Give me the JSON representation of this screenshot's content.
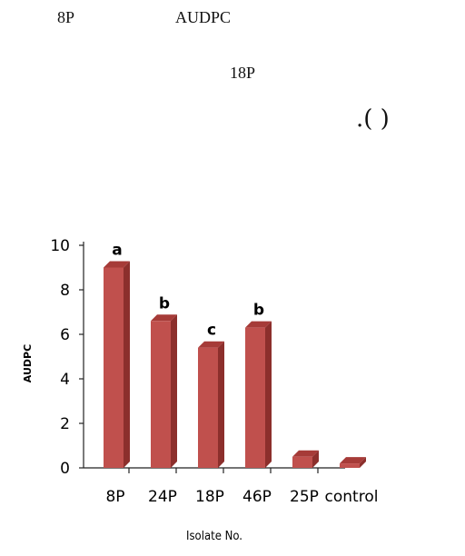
{
  "text": {
    "line1_left": "8P",
    "line1_right": "AUDPC",
    "line2": "18P",
    "line3": ".(          )"
  },
  "chart_data": {
    "type": "bar",
    "categories": [
      "8P",
      "24P",
      "18P",
      "46P",
      "25P",
      "control"
    ],
    "values": [
      9.0,
      6.6,
      5.4,
      6.3,
      0.5,
      0.2
    ],
    "significance": [
      "a",
      "b",
      "c",
      "b",
      "",
      ""
    ],
    "ylabel": "AUDPC",
    "xlabel": "Isolate No.",
    "ylim": [
      0,
      10
    ],
    "yticks": [
      0,
      2,
      4,
      6,
      8,
      10
    ],
    "grid": false,
    "bar_color": "#c0504d",
    "bar_top_color": "#a63b38",
    "bar_side_color": "#8c2f2c"
  }
}
